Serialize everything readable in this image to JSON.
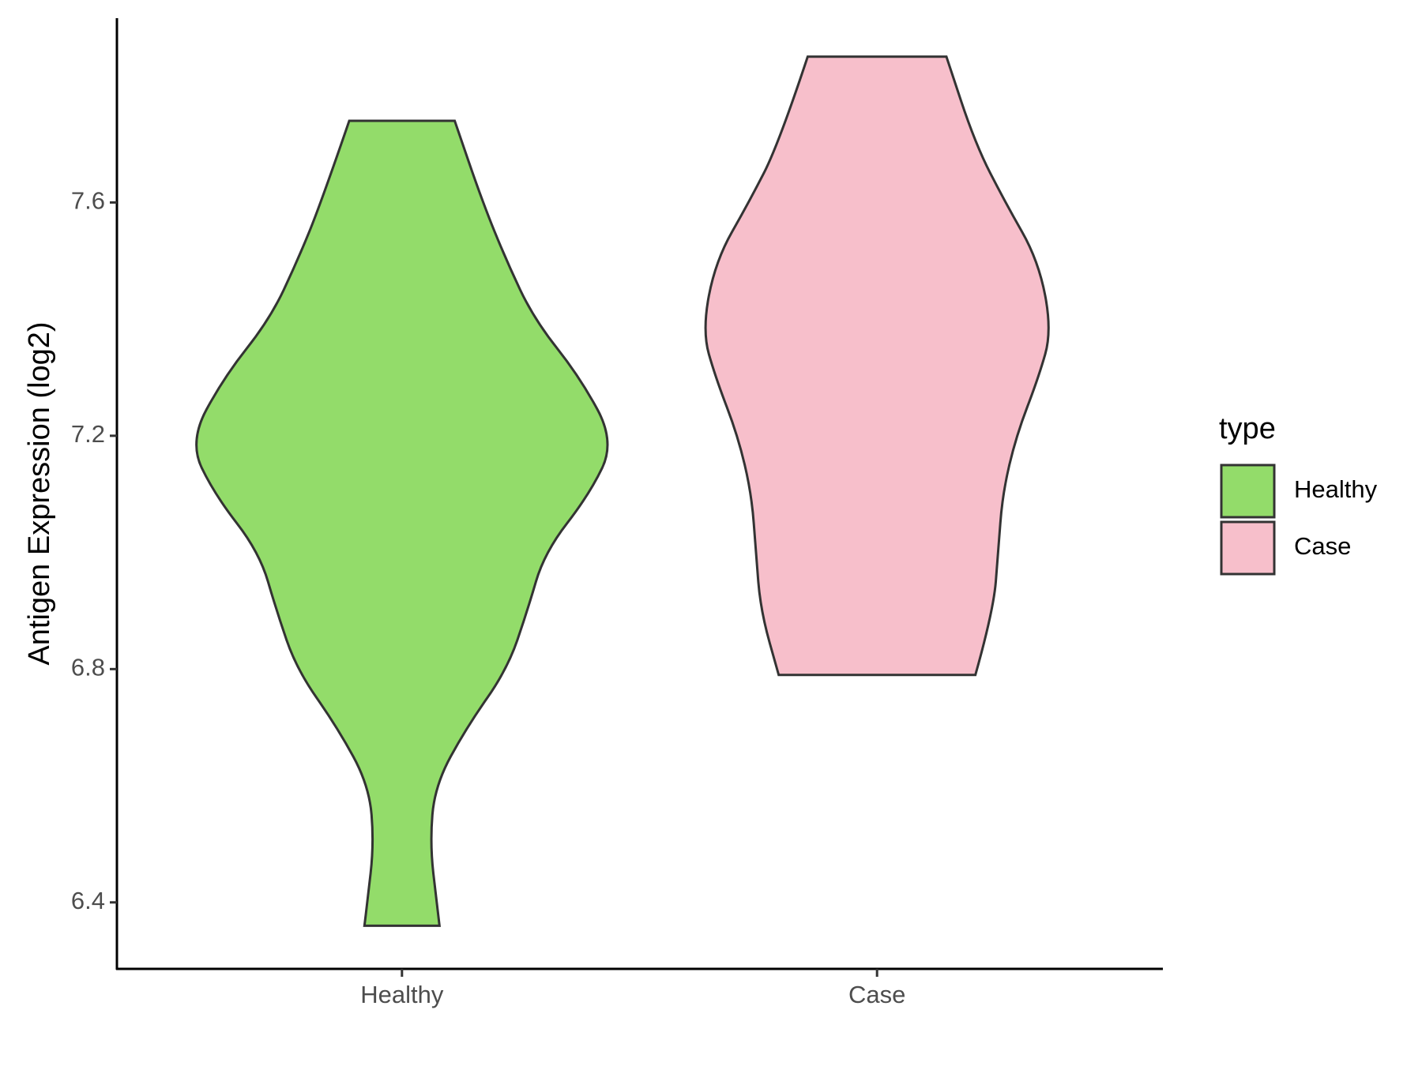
{
  "chart_data": {
    "type": "violin",
    "y_label": "Antigen Expression (log2)",
    "categories": [
      "Healthy",
      "Case"
    ],
    "legend_title": "type",
    "ylim": [
      6.286,
      7.916
    ],
    "yticks": [
      6.4,
      6.8,
      7.2,
      7.6
    ],
    "series": [
      {
        "name": "Healthy",
        "color": "#93dc6a",
        "y": [
          7.74,
          7.6,
          7.5,
          7.4,
          7.3,
          7.19,
          7.1,
          7.0,
          6.9,
          6.8,
          6.7,
          6.6,
          6.5,
          6.4,
          6.36
        ],
        "widths": [
          0.111,
          0.17,
          0.22,
          0.278,
          0.375,
          0.448,
          0.395,
          0.3,
          0.264,
          0.222,
          0.136,
          0.069,
          0.059,
          0.073,
          0.079
        ]
      },
      {
        "name": "Case",
        "color": "#f7bfcb",
        "y": [
          7.85,
          7.7,
          7.6,
          7.5,
          7.38,
          7.3,
          7.2,
          7.1,
          7.0,
          6.9,
          6.79
        ],
        "widths": [
          0.146,
          0.207,
          0.27,
          0.34,
          0.368,
          0.34,
          0.293,
          0.264,
          0.255,
          0.245,
          0.207
        ]
      }
    ]
  }
}
